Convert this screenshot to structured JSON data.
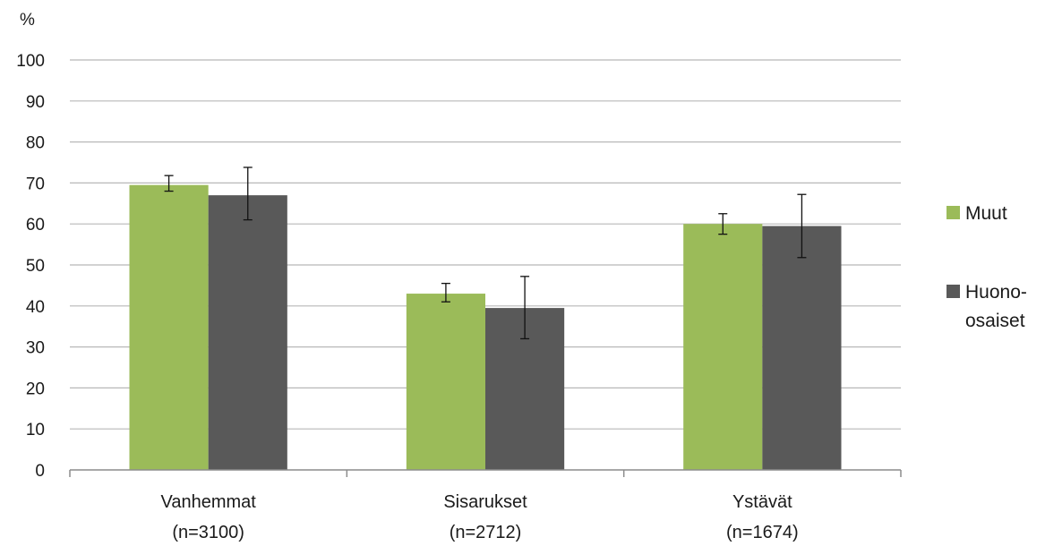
{
  "chart_data": {
    "type": "bar",
    "ylabel": "%",
    "ylim": [
      0,
      100
    ],
    "yticks": [
      0,
      10,
      20,
      30,
      40,
      50,
      60,
      70,
      80,
      90,
      100
    ],
    "grid": true,
    "legend_position": "right",
    "categories": [
      {
        "name": "Vanhemmat",
        "n": "(n=3100)"
      },
      {
        "name": "Sisarukset",
        "n": "(n=2712)"
      },
      {
        "name": "Ystävät",
        "n": "(n=1674)"
      }
    ],
    "series": [
      {
        "name": "Muut",
        "color": "#9bbb59",
        "values": [
          69.5,
          43,
          60
        ],
        "error_low": [
          68,
          41,
          57.5
        ],
        "error_high": [
          71.8,
          45.5,
          62.5
        ]
      },
      {
        "name": "Huono-osaiset",
        "name_lines": [
          "Huono-",
          "osaiset"
        ],
        "color": "#595959",
        "values": [
          67,
          39.5,
          59.5
        ],
        "error_low": [
          61,
          32,
          51.8
        ],
        "error_high": [
          73.8,
          47.2,
          67.2
        ]
      }
    ]
  }
}
